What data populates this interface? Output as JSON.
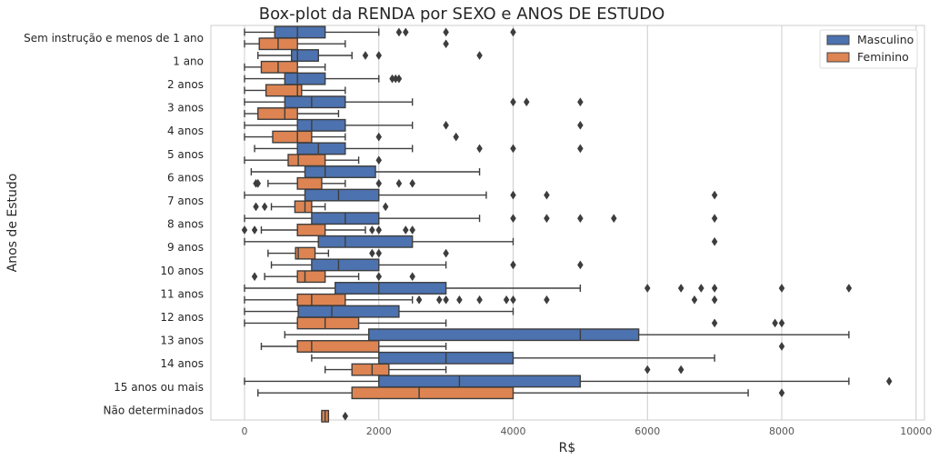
{
  "chart_data": {
    "type": "boxplot",
    "title": "Box-plot da RENDA por SEXO e ANOS DE ESTUDO",
    "xlabel": "R$",
    "ylabel": "Anos de Estudo",
    "xlim": [
      -250,
      10000
    ],
    "xticks": [
      0,
      2000,
      4000,
      6000,
      8000,
      10000
    ],
    "grid": true,
    "legend_position": "top-right",
    "colors": {
      "Masculino": "#4c72b0",
      "Feminino": "#dd8452"
    },
    "categories": [
      "Sem instrução e menos de 1 ano",
      "1 ano",
      "2 anos",
      "3 anos",
      "4 anos",
      "5 anos",
      "6 anos",
      "7 anos",
      "8 anos",
      "9 anos",
      "10 anos",
      "11 anos",
      "12 anos",
      "13 anos",
      "14 anos",
      "15 anos ou mais",
      "Não determinados"
    ],
    "series": [
      {
        "name": "Masculino",
        "boxes": [
          {
            "whislo": 0,
            "q1": 450,
            "med": 788,
            "q3": 1200,
            "whishi": 2000,
            "fliers": [
              2300,
              2400,
              3000,
              4000
            ]
          },
          {
            "whislo": 200,
            "q1": 700,
            "med": 788,
            "q3": 1100,
            "whishi": 1600,
            "fliers": [
              1800,
              2000,
              3500
            ]
          },
          {
            "whislo": 0,
            "q1": 600,
            "med": 788,
            "q3": 1200,
            "whishi": 2000,
            "fliers": [
              2200,
              2250,
              2300
            ]
          },
          {
            "whislo": 0,
            "q1": 600,
            "med": 1000,
            "q3": 1500,
            "whishi": 2500,
            "fliers": [
              4000,
              4200,
              5000
            ]
          },
          {
            "whislo": 0,
            "q1": 788,
            "med": 1000,
            "q3": 1500,
            "whishi": 2500,
            "fliers": [
              3000,
              5000
            ]
          },
          {
            "whislo": 150,
            "q1": 788,
            "med": 1100,
            "q3": 1500,
            "whishi": 2500,
            "fliers": [
              3500,
              4000,
              5000
            ]
          },
          {
            "whislo": 100,
            "q1": 900,
            "med": 1200,
            "q3": 1950,
            "whishi": 3500,
            "fliers": []
          },
          {
            "whislo": 0,
            "q1": 900,
            "med": 1400,
            "q3": 2000,
            "whishi": 3600,
            "fliers": [
              4000,
              4500,
              7000
            ]
          },
          {
            "whislo": 0,
            "q1": 1000,
            "med": 1500,
            "q3": 2000,
            "whishi": 3500,
            "fliers": [
              4000,
              4500,
              5000,
              5500,
              7000
            ]
          },
          {
            "whislo": 0,
            "q1": 1100,
            "med": 1500,
            "q3": 2500,
            "whishi": 4000,
            "fliers": [
              7000
            ]
          },
          {
            "whislo": 400,
            "q1": 1000,
            "med": 1400,
            "q3": 2000,
            "whishi": 3000,
            "fliers": [
              4000,
              5000
            ]
          },
          {
            "whislo": 0,
            "q1": 1350,
            "med": 2000,
            "q3": 3000,
            "whishi": 5000,
            "fliers": [
              6000,
              6500,
              6800,
              7000,
              8000,
              9000
            ]
          },
          {
            "whislo": 0,
            "q1": 800,
            "med": 1300,
            "q3": 2300,
            "whishi": 4000,
            "fliers": []
          },
          {
            "whislo": 600,
            "q1": 1850,
            "med": 5000,
            "q3": 5870,
            "whishi": 9000,
            "fliers": []
          },
          {
            "whislo": 1000,
            "q1": 2000,
            "med": 3000,
            "q3": 4000,
            "whishi": 7000,
            "fliers": []
          },
          {
            "whislo": 0,
            "q1": 2000,
            "med": 3200,
            "q3": 5000,
            "whishi": 9000,
            "fliers": [
              9600
            ]
          },
          {
            "whislo": null,
            "q1": null,
            "med": null,
            "q3": null,
            "whishi": null,
            "fliers": []
          }
        ]
      },
      {
        "name": "Feminino",
        "boxes": [
          {
            "whislo": 0,
            "q1": 220,
            "med": 500,
            "q3": 788,
            "whishi": 1500,
            "fliers": [
              3000
            ]
          },
          {
            "whislo": 0,
            "q1": 250,
            "med": 500,
            "q3": 788,
            "whishi": 1200,
            "fliers": []
          },
          {
            "whislo": 0,
            "q1": 320,
            "med": 788,
            "q3": 850,
            "whishi": 1500,
            "fliers": []
          },
          {
            "whislo": 0,
            "q1": 200,
            "med": 600,
            "q3": 788,
            "whishi": 1400,
            "fliers": []
          },
          {
            "whislo": 0,
            "q1": 420,
            "med": 788,
            "q3": 1000,
            "whishi": 1500,
            "fliers": [
              2000,
              3150
            ]
          },
          {
            "whislo": 0,
            "q1": 650,
            "med": 800,
            "q3": 1200,
            "whishi": 1700,
            "fliers": [
              2000
            ]
          },
          {
            "whislo": 350,
            "q1": 788,
            "med": 788,
            "q3": 1150,
            "whishi": 1500,
            "fliers": [
              170,
              200,
              2000,
              2300,
              2500
            ]
          },
          {
            "whislo": 400,
            "q1": 750,
            "med": 900,
            "q3": 1000,
            "whishi": 1200,
            "fliers": [
              170,
              300,
              2100
            ]
          },
          {
            "whislo": 250,
            "q1": 788,
            "med": 788,
            "q3": 1200,
            "whishi": 1800,
            "fliers": [
              0,
              150,
              1900,
              2000,
              2400,
              2500
            ]
          },
          {
            "whislo": 350,
            "q1": 760,
            "med": 800,
            "q3": 1050,
            "whishi": 1250,
            "fliers": [
              1900,
              2000,
              3000
            ]
          },
          {
            "whislo": 300,
            "q1": 788,
            "med": 900,
            "q3": 1200,
            "whishi": 1700,
            "fliers": [
              150,
              2000,
              2500
            ]
          },
          {
            "whislo": 0,
            "q1": 788,
            "med": 1000,
            "q3": 1500,
            "whishi": 2500,
            "fliers": [
              2600,
              2900,
              3000,
              3200,
              3500,
              3900,
              4000,
              4500,
              6700,
              7000
            ]
          },
          {
            "whislo": 0,
            "q1": 788,
            "med": 1200,
            "q3": 1700,
            "whishi": 3000,
            "fliers": [
              7000,
              7900,
              8000
            ]
          },
          {
            "whislo": 250,
            "q1": 788,
            "med": 1000,
            "q3": 2000,
            "whishi": 3000,
            "fliers": [
              8000
            ]
          },
          {
            "whislo": 1200,
            "q1": 1600,
            "med": 1900,
            "q3": 2150,
            "whishi": 3000,
            "fliers": [
              6000,
              6500
            ]
          },
          {
            "whislo": 200,
            "q1": 1600,
            "med": 2600,
            "q3": 4000,
            "whishi": 7500,
            "fliers": [
              8000
            ]
          },
          {
            "whislo": 1150,
            "q1": 1150,
            "med": 1200,
            "q3": 1250,
            "whishi": 1250,
            "fliers": [
              1500
            ]
          }
        ]
      }
    ]
  }
}
